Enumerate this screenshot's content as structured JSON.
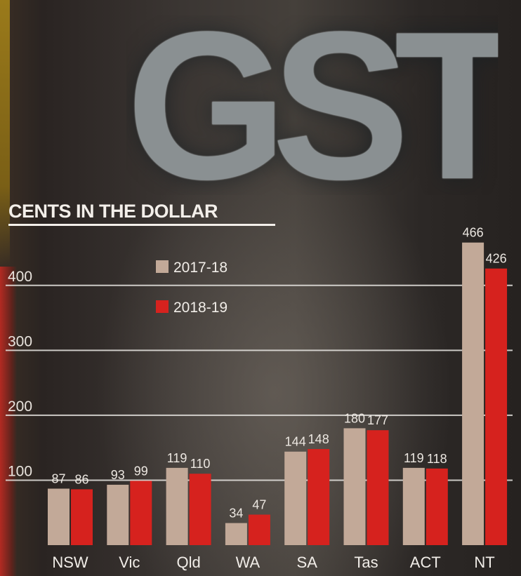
{
  "banner": {
    "text": "GST"
  },
  "subtitle": "CENTS IN THE DOLLAR",
  "colors": {
    "series_2017_18": "#c2a998",
    "series_2018_19": "#d6221e",
    "gridline": "#e8e6e2"
  },
  "chart_data": {
    "type": "bar",
    "title": "CENTS IN THE DOLLAR",
    "categories": [
      "NSW",
      "Vic",
      "Qld",
      "WA",
      "SA",
      "Tas",
      "ACT",
      "NT"
    ],
    "series": [
      {
        "name": "2017-18",
        "values": [
          87,
          93,
          119,
          34,
          144,
          180,
          119,
          466
        ]
      },
      {
        "name": "2018-19",
        "values": [
          86,
          99,
          110,
          47,
          148,
          177,
          118,
          426
        ]
      }
    ],
    "yticks": [
      100,
      200,
      300,
      400
    ],
    "ylim": [
      0,
      480
    ],
    "grid": true,
    "legend": "top-left"
  }
}
